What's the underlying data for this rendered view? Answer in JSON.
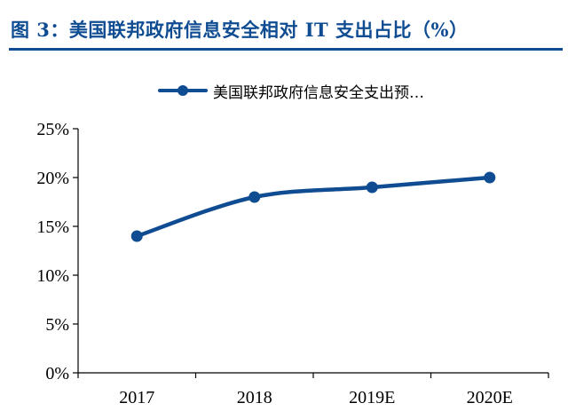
{
  "title": "图 3：美国联邦政府信息安全相对 IT 支出占比（%）",
  "colors": {
    "accent": "#0f4c92",
    "axis": "#000000"
  },
  "chart_data": {
    "type": "line",
    "categories": [
      "2017",
      "2018",
      "2019E",
      "2020E"
    ],
    "series": [
      {
        "name": "美国联邦政府信息安全支出预…",
        "values": [
          14,
          18,
          19,
          20
        ]
      }
    ],
    "y_ticks": [
      "0%",
      "5%",
      "10%",
      "15%",
      "20%",
      "25%"
    ],
    "ylim": [
      0,
      25
    ],
    "legend_position": "top-center",
    "grid": false
  }
}
